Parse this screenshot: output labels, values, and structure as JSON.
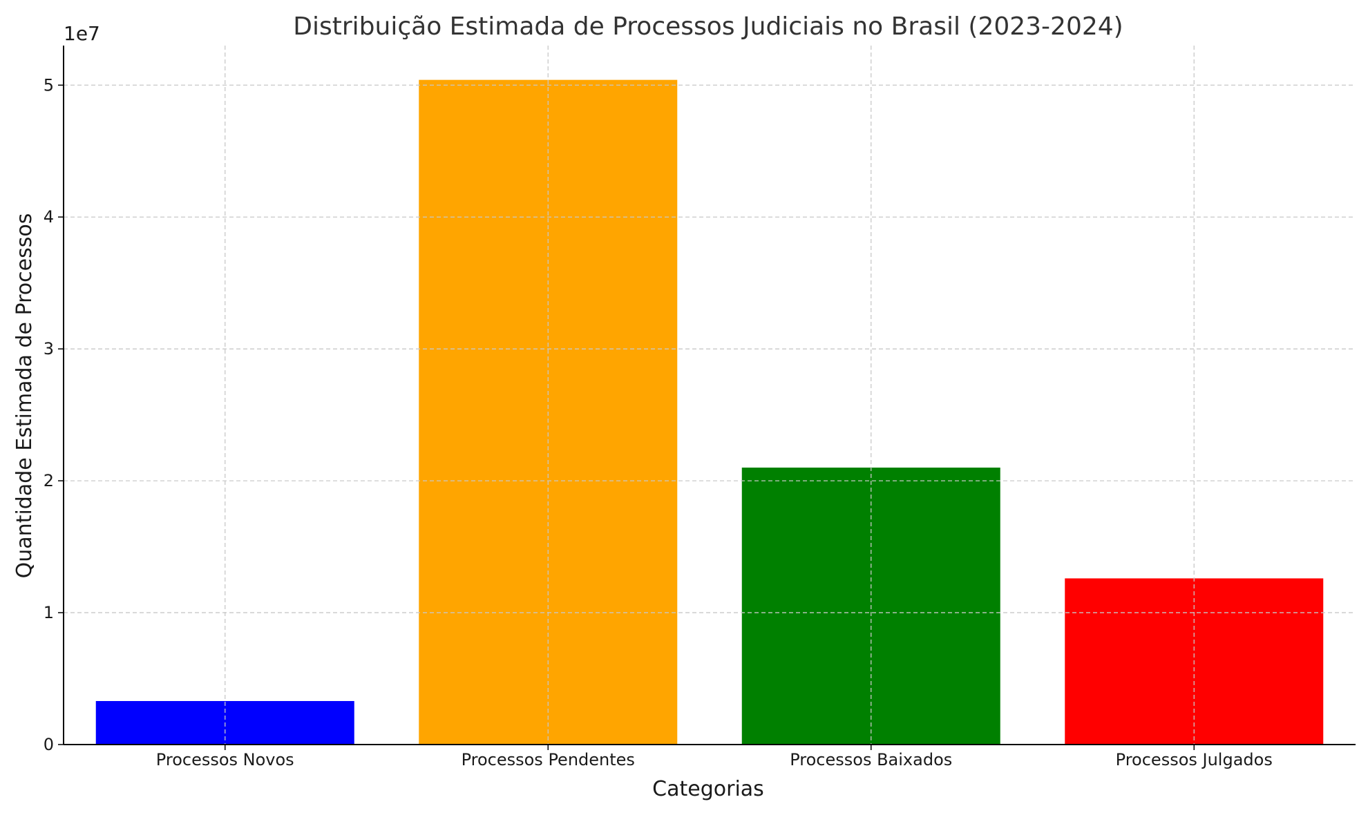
{
  "chart_data": {
    "type": "bar",
    "title": "Distribuição Estimada de Processos Judiciais no Brasil (2023-2024)",
    "xlabel": "Categorias",
    "ylabel": "Quantidade Estimada de Processos",
    "y_offset_label": "1e7",
    "categories": [
      "Processos Novos",
      "Processos Pendentes",
      "Processos Baixados",
      "Processos Julgados"
    ],
    "values": [
      3300000,
      50400000,
      21000000,
      12600000
    ],
    "colors": [
      "#0000ff",
      "#ffa500",
      "#008000",
      "#ff0000"
    ],
    "ylim": [
      0,
      53000000
    ],
    "yticks": [
      0,
      10000000,
      20000000,
      30000000,
      40000000,
      50000000
    ],
    "ytick_labels": [
      "0",
      "1",
      "2",
      "3",
      "4",
      "5"
    ],
    "grid": true
  }
}
